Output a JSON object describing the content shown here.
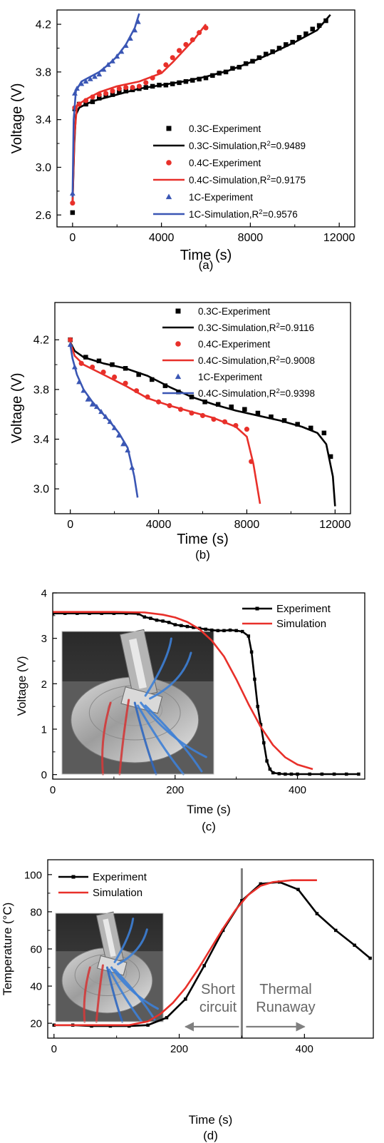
{
  "colors": {
    "black": "#000000",
    "red": "#e8302a",
    "blue": "#3a56b4",
    "gray": "#808080"
  },
  "chart_data": [
    {
      "type": "line",
      "panel_label": "(a)",
      "xlabel": "Time (s)",
      "ylabel": "Voltage (V)",
      "xlim": [
        -700,
        12700
      ],
      "ylim": [
        2.5,
        4.32
      ],
      "xticks": [
        0,
        4000,
        8000,
        12000
      ],
      "yticks": [
        2.6,
        3.0,
        3.4,
        3.8,
        4.2
      ],
      "xticklabels": [
        "0",
        "4000",
        "8000",
        "12000"
      ],
      "yticklabels": [
        "2.6",
        "3.0",
        "3.4",
        "3.8",
        "4.2"
      ],
      "legend_position": "bottom-right",
      "series": [
        {
          "name": "0.3C-Experiment",
          "kind": "marker",
          "marker": "square",
          "color": "#000000",
          "x": [
            0,
            100,
            300,
            600,
            900,
            1200,
            1500,
            1800,
            2100,
            2400,
            2700,
            3000,
            3300,
            3600,
            3900,
            4200,
            4500,
            4800,
            5100,
            5400,
            5700,
            6000,
            6300,
            6600,
            6900,
            7200,
            7500,
            7800,
            8100,
            8400,
            8700,
            9000,
            9300,
            9600,
            9900,
            10200,
            10500,
            10800,
            11100,
            11400
          ],
          "y": [
            2.62,
            3.49,
            3.53,
            3.53,
            3.55,
            3.58,
            3.6,
            3.61,
            3.63,
            3.64,
            3.65,
            3.66,
            3.67,
            3.68,
            3.69,
            3.69,
            3.7,
            3.71,
            3.72,
            3.73,
            3.74,
            3.75,
            3.77,
            3.79,
            3.8,
            3.83,
            3.84,
            3.87,
            3.89,
            3.92,
            3.95,
            3.97,
            4.0,
            4.03,
            4.05,
            4.09,
            4.12,
            4.16,
            4.19,
            4.23
          ]
        },
        {
          "name": "0.3C-Simulation,R²=0.9489",
          "kind": "line",
          "color": "#000000",
          "x": [
            0,
            80,
            150,
            300,
            600,
            1000,
            2000,
            3000,
            4000,
            5000,
            6000,
            7000,
            8000,
            9000,
            10000,
            11000,
            11600
          ],
          "y": [
            2.7,
            3.2,
            3.44,
            3.5,
            3.53,
            3.56,
            3.61,
            3.66,
            3.69,
            3.72,
            3.76,
            3.81,
            3.88,
            3.96,
            4.05,
            4.15,
            4.28
          ]
        },
        {
          "name": "0.4C-Experiment",
          "kind": "marker",
          "marker": "circle",
          "color": "#e8302a",
          "x": [
            0,
            100,
            300,
            600,
            900,
            1200,
            1500,
            1800,
            2100,
            2400,
            2700,
            3000,
            3300,
            3600,
            3900,
            4200,
            4500,
            4800,
            5100,
            5400,
            5700,
            6000
          ],
          "y": [
            2.7,
            3.5,
            3.53,
            3.56,
            3.59,
            3.61,
            3.62,
            3.64,
            3.66,
            3.67,
            3.67,
            3.68,
            3.71,
            3.75,
            3.8,
            3.86,
            3.92,
            3.98,
            4.03,
            4.07,
            4.13,
            4.17
          ]
        },
        {
          "name": "0.4C-Simulation,R²=0.9175",
          "kind": "line",
          "color": "#e8302a",
          "x": [
            0,
            80,
            200,
            600,
            1200,
            2000,
            3000,
            4000,
            4500,
            5000,
            5500,
            6000
          ],
          "y": [
            2.7,
            3.25,
            3.52,
            3.57,
            3.63,
            3.68,
            3.72,
            3.79,
            3.88,
            3.98,
            4.08,
            4.2
          ]
        },
        {
          "name": "1C-Experiment",
          "kind": "marker",
          "marker": "triangle",
          "color": "#3a56b4",
          "x": [
            0,
            100,
            200,
            400,
            600,
            800,
            1000,
            1200,
            1400,
            1600,
            1800,
            2000,
            2200,
            2400,
            2600,
            2800,
            2950
          ],
          "y": [
            2.78,
            3.62,
            3.66,
            3.7,
            3.72,
            3.74,
            3.76,
            3.78,
            3.82,
            3.86,
            3.89,
            3.93,
            3.97,
            4.02,
            4.08,
            4.15,
            4.22
          ]
        },
        {
          "name": "1C-Simulation,R²=0.9576",
          "kind": "line",
          "color": "#3a56b4",
          "x": [
            0,
            50,
            150,
            400,
            800,
            1200,
            1600,
            2000,
            2400,
            2800,
            3000
          ],
          "y": [
            2.75,
            3.4,
            3.64,
            3.72,
            3.76,
            3.8,
            3.86,
            3.93,
            4.03,
            4.17,
            4.29
          ]
        }
      ]
    },
    {
      "type": "line",
      "panel_label": "(b)",
      "xlabel": "Time (s)",
      "ylabel": "Voltage (V)",
      "xlim": [
        -700,
        12700
      ],
      "ylim": [
        2.8,
        4.5
      ],
      "xticks": [
        0,
        4000,
        8000,
        12000
      ],
      "yticks": [
        3.0,
        3.4,
        3.8,
        4.2
      ],
      "xticklabels": [
        "0",
        "4000",
        "8000",
        "12000"
      ],
      "yticklabels": [
        "3.0",
        "3.4",
        "3.8",
        "4.2"
      ],
      "legend_position": "top-right",
      "series": [
        {
          "name": "0.3C-Experiment",
          "kind": "marker",
          "marker": "square",
          "color": "#000000",
          "x": [
            0,
            700,
            1300,
            1900,
            2500,
            3100,
            3700,
            4300,
            4900,
            5500,
            6100,
            6700,
            7300,
            7900,
            8500,
            9100,
            9700,
            10300,
            10900,
            11500,
            11800
          ],
          "y": [
            4.2,
            4.06,
            4.03,
            4.0,
            3.97,
            3.92,
            3.88,
            3.83,
            3.78,
            3.74,
            3.7,
            3.68,
            3.66,
            3.64,
            3.61,
            3.58,
            3.55,
            3.52,
            3.49,
            3.45,
            3.26
          ]
        },
        {
          "name": "0.3C-Simulation,R²=0.9116",
          "kind": "line",
          "color": "#000000",
          "x": [
            0,
            200,
            600,
            1500,
            2500,
            3500,
            4500,
            5500,
            6500,
            7500,
            8500,
            9500,
            10500,
            11200,
            11600,
            11900,
            12000
          ],
          "y": [
            4.18,
            4.11,
            4.06,
            4.01,
            3.97,
            3.91,
            3.82,
            3.74,
            3.68,
            3.63,
            3.59,
            3.55,
            3.5,
            3.45,
            3.36,
            3.1,
            2.86
          ]
        },
        {
          "name": "0.4C-Experiment",
          "kind": "marker",
          "marker": "circle",
          "color": "#e8302a",
          "x": [
            0,
            500,
            1000,
            1500,
            2000,
            2500,
            3000,
            3500,
            4000,
            4500,
            5000,
            5500,
            6000,
            6500,
            7000,
            7500,
            8000,
            8200
          ],
          "y": [
            4.2,
            4.01,
            3.98,
            3.94,
            3.9,
            3.85,
            3.79,
            3.74,
            3.7,
            3.67,
            3.64,
            3.61,
            3.59,
            3.56,
            3.54,
            3.51,
            3.48,
            3.22
          ]
        },
        {
          "name": "0.4C-Simulation,R²=0.9008",
          "kind": "line",
          "color": "#e8302a",
          "x": [
            0,
            200,
            600,
            1500,
            2500,
            3500,
            4500,
            5500,
            6500,
            7500,
            8000,
            8300,
            8600
          ],
          "y": [
            4.18,
            4.07,
            4.0,
            3.92,
            3.83,
            3.73,
            3.67,
            3.62,
            3.57,
            3.5,
            3.42,
            3.2,
            2.88
          ]
        },
        {
          "name": "1C-Experiment",
          "kind": "marker",
          "marker": "triangle",
          "color": "#3a56b4",
          "x": [
            0,
            200,
            400,
            600,
            800,
            1000,
            1200,
            1400,
            1600,
            1800,
            2000,
            2200,
            2400,
            2600,
            2800
          ],
          "y": [
            4.16,
            3.98,
            3.86,
            3.79,
            3.72,
            3.68,
            3.66,
            3.62,
            3.58,
            3.54,
            3.49,
            3.43,
            3.36,
            3.31,
            3.17
          ]
        },
        {
          "name": "0.4C-Simulation,R²=0.9398",
          "kind": "line",
          "color": "#3a56b4",
          "x": [
            0,
            100,
            300,
            600,
            1000,
            1400,
            1800,
            2200,
            2600,
            2900,
            3050
          ],
          "y": [
            4.16,
            4.05,
            3.92,
            3.8,
            3.7,
            3.62,
            3.54,
            3.45,
            3.33,
            3.1,
            2.93
          ]
        }
      ]
    },
    {
      "type": "line",
      "panel_label": "(c)",
      "xlabel": "Time (s)",
      "ylabel": "Voltage (V)",
      "xlim": [
        0,
        510
      ],
      "ylim": [
        -0.1,
        4
      ],
      "xticks": [
        0,
        200,
        400
      ],
      "yticks": [
        0,
        1,
        2,
        3,
        4
      ],
      "xticklabels": [
        "0",
        "200",
        "400"
      ],
      "yticklabels": [
        "0",
        "1",
        "2",
        "3",
        "4"
      ],
      "legend_position": "top-right",
      "inset": "photograph",
      "series": [
        {
          "name": "Experiment",
          "kind": "linemarker",
          "marker": "square",
          "color": "#000000",
          "x": [
            0,
            20,
            40,
            60,
            80,
            100,
            120,
            140,
            150,
            160,
            170,
            180,
            190,
            200,
            210,
            220,
            230,
            240,
            250,
            260,
            270,
            280,
            290,
            300,
            310,
            320,
            325,
            330,
            335,
            340,
            345,
            350,
            355,
            360,
            370,
            380,
            390,
            400,
            420,
            440,
            460,
            480,
            500
          ],
          "y": [
            3.55,
            3.55,
            3.55,
            3.55,
            3.55,
            3.55,
            3.55,
            3.54,
            3.47,
            3.44,
            3.4,
            3.38,
            3.35,
            3.3,
            3.28,
            3.26,
            3.24,
            3.22,
            3.2,
            3.18,
            3.17,
            3.17,
            3.18,
            3.17,
            3.15,
            3.05,
            2.7,
            2.1,
            1.5,
            1.1,
            0.7,
            0.3,
            0.12,
            0.04,
            0.02,
            0.01,
            0.01,
            0.01,
            0.01,
            0.01,
            0.01,
            0.01,
            0.01
          ]
        },
        {
          "name": "Simulation",
          "kind": "line",
          "color": "#e8302a",
          "x": [
            0,
            100,
            150,
            180,
            200,
            220,
            240,
            260,
            280,
            300,
            320,
            340,
            360,
            380,
            400,
            425
          ],
          "y": [
            3.58,
            3.58,
            3.57,
            3.52,
            3.46,
            3.36,
            3.2,
            2.95,
            2.6,
            2.1,
            1.55,
            1.05,
            0.65,
            0.38,
            0.22,
            0.12
          ]
        }
      ]
    },
    {
      "type": "line",
      "panel_label": "(d)",
      "xlabel": "Time (s)",
      "ylabel": "Temperature (°C)",
      "xlim": [
        -10,
        510
      ],
      "ylim": [
        12,
        108
      ],
      "xticks": [
        0,
        200,
        400
      ],
      "yticks": [
        20,
        40,
        60,
        80,
        100
      ],
      "xticklabels": [
        "0",
        "200",
        "400"
      ],
      "yticklabels": [
        "20",
        "40",
        "60",
        "80",
        "100"
      ],
      "legend_position": "top-left",
      "inset": "photograph",
      "annotations": [
        {
          "text_lines": [
            "Short",
            "circuit"
          ],
          "arrow": "left",
          "x_from": 300,
          "x_to": 210
        },
        {
          "text_lines": [
            "Thermal",
            "Runaway"
          ],
          "arrow": "right",
          "x_from": 300,
          "x_to": 400
        }
      ],
      "vertical_line_x": 300,
      "series": [
        {
          "name": "Experiment",
          "kind": "linemarker",
          "marker": "square",
          "color": "#000000",
          "x": [
            0,
            30,
            60,
            90,
            120,
            150,
            180,
            210,
            240,
            270,
            300,
            330,
            360,
            390,
            420,
            450,
            480,
            505
          ],
          "y": [
            19,
            19,
            18.5,
            18.5,
            18.5,
            19,
            23,
            33,
            51,
            70,
            86,
            95,
            96,
            92,
            79,
            70,
            62,
            55
          ]
        },
        {
          "name": "Simulation",
          "kind": "line",
          "color": "#e8302a",
          "x": [
            0,
            60,
            120,
            150,
            170,
            190,
            210,
            230,
            250,
            270,
            290,
            310,
            330,
            350,
            380,
            420
          ],
          "y": [
            19,
            19,
            19,
            21,
            25,
            31,
            39,
            49,
            60,
            71,
            81,
            89,
            94,
            96,
            97,
            97
          ]
        }
      ]
    }
  ]
}
